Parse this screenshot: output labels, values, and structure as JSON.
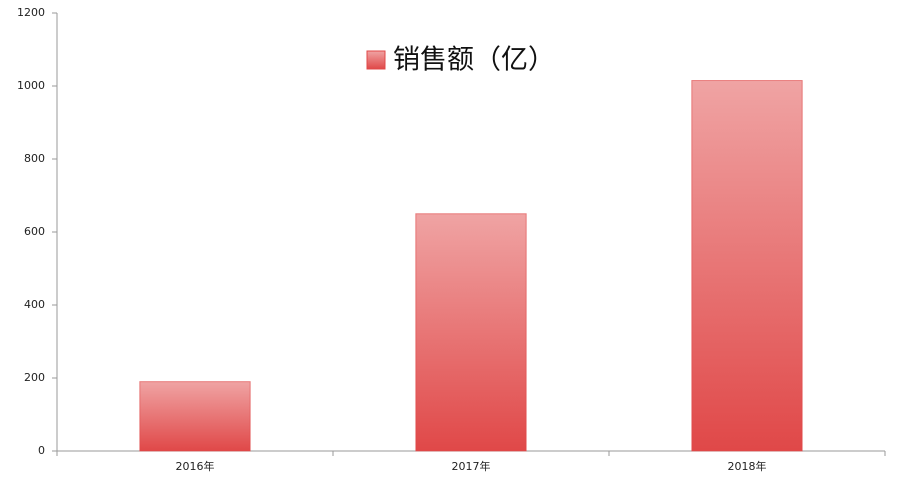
{
  "chart_data": {
    "type": "bar",
    "categories": [
      "2016年",
      "2017年",
      "2018年"
    ],
    "series": [
      {
        "name": "销售额（亿）",
        "color": "#e04848",
        "values": [
          190,
          650,
          1015
        ]
      }
    ],
    "ylim": [
      0,
      1200
    ],
    "yticks": [
      0,
      200,
      400,
      600,
      800,
      1000,
      1200
    ],
    "grid": false,
    "legend": "top"
  }
}
